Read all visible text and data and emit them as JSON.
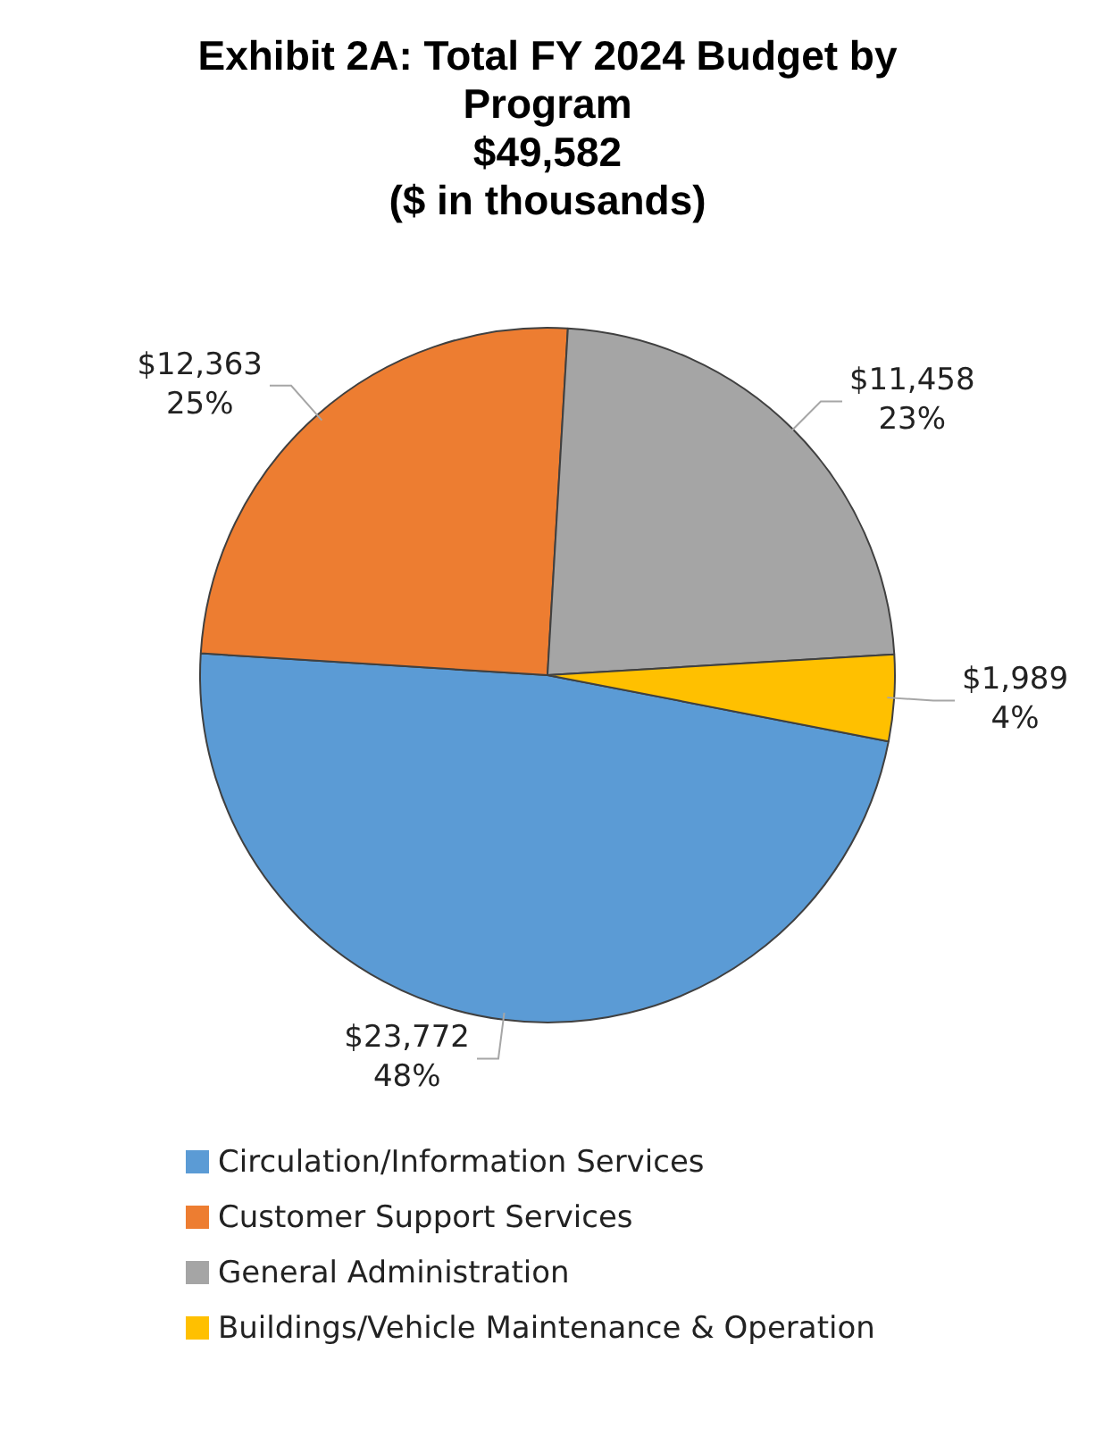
{
  "chart_data": {
    "type": "pie",
    "title": "Exhibit 2A: Total FY 2024 Budget by Program",
    "subtitle": "$49,582\n($ in thousands)",
    "categories": [
      "Circulation/Information Services",
      "Customer Support Services",
      "General Administration",
      "Buildings/Vehicle Maintenance & Operation"
    ],
    "values": [
      23772,
      12363,
      11458,
      1989
    ],
    "colors": [
      "#5b9bd5",
      "#ed7d31",
      "#a5a5a5",
      "#ffc000"
    ],
    "value_labels": [
      "$23,772\n48%",
      "$12,363\n25%",
      "$11,458\n23%",
      "$1,989\n4%"
    ],
    "legend": "bottom"
  }
}
